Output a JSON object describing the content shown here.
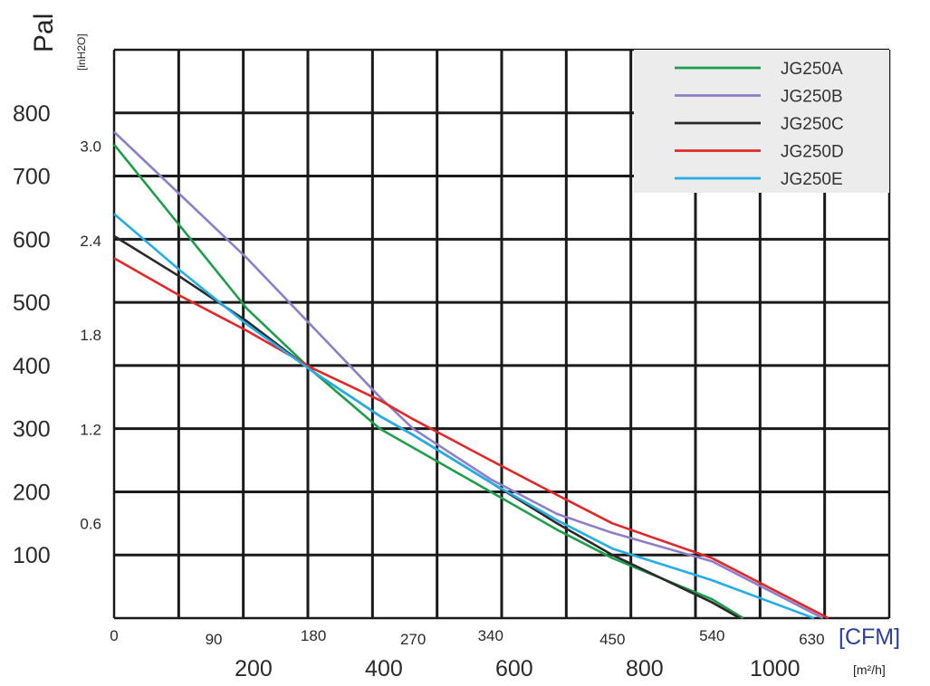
{
  "chart_data": {
    "type": "line",
    "y_primary": {
      "label": "Pal",
      "ticks": [
        {
          "label": "800",
          "value": 800
        },
        {
          "label": "700",
          "value": 700
        },
        {
          "label": "600",
          "value": 600
        },
        {
          "label": "500",
          "value": 500
        },
        {
          "label": "400",
          "value": 400
        },
        {
          "label": "300",
          "value": 300
        },
        {
          "label": "200",
          "value": 200
        },
        {
          "label": "100",
          "value": 100
        }
      ],
      "ylim": [
        0,
        900
      ]
    },
    "y_secondary": {
      "label": "[inH2O]",
      "ticks": [
        {
          "label": "3.0",
          "value": 3.0
        },
        {
          "label": "2.4",
          "value": 2.4
        },
        {
          "label": "1.8",
          "value": 1.8
        },
        {
          "label": "1.2",
          "value": 1.2
        },
        {
          "label": "0.6",
          "value": 0.6
        }
      ]
    },
    "x_primary": {
      "label": "[CFM]",
      "ticks": [
        {
          "label": "0",
          "value": 0
        },
        {
          "label": "90",
          "value": 90
        },
        {
          "label": "180",
          "value": 180
        },
        {
          "label": "270",
          "value": 270
        },
        {
          "label": "340",
          "value": 340
        },
        {
          "label": "450",
          "value": 450
        },
        {
          "label": "540",
          "value": 540
        },
        {
          "label": "630",
          "value": 630
        }
      ],
      "xlim": [
        0,
        700
      ]
    },
    "x_secondary": {
      "label": "[m²/h]",
      "ticks": [
        {
          "label": "200",
          "value": 200
        },
        {
          "label": "400",
          "value": 400
        },
        {
          "label": "600",
          "value": 600
        },
        {
          "label": "800",
          "value": 800
        },
        {
          "label": "1000",
          "value": 1000
        }
      ]
    },
    "grid": true,
    "legend_position": "top-right",
    "series": [
      {
        "name": "JG250A",
        "color": "#1e9e4a",
        "x": [
          0,
          60,
          120,
          180,
          240,
          270,
          340,
          400,
          450,
          540,
          568
        ],
        "y": [
          750,
          620,
          490,
          390,
          300,
          270,
          200,
          140,
          95,
          30,
          0
        ]
      },
      {
        "name": "JG250B",
        "color": "#8e7ec8",
        "x": [
          0,
          60,
          120,
          180,
          240,
          270,
          340,
          400,
          450,
          540,
          640
        ],
        "y": [
          770,
          670,
          570,
          460,
          350,
          300,
          220,
          165,
          135,
          90,
          0
        ]
      },
      {
        "name": "JG250C",
        "color": "#2a2a2a",
        "x": [
          0,
          60,
          120,
          180,
          240,
          270,
          340,
          400,
          450,
          540,
          565
        ],
        "y": [
          605,
          540,
          470,
          390,
          320,
          290,
          215,
          150,
          100,
          25,
          0
        ]
      },
      {
        "name": "JG250D",
        "color": "#e02828",
        "x": [
          0,
          60,
          120,
          180,
          240,
          270,
          340,
          400,
          450,
          540,
          645
        ],
        "y": [
          570,
          510,
          455,
          395,
          345,
          315,
          250,
          195,
          150,
          95,
          0
        ]
      },
      {
        "name": "JG250E",
        "color": "#25aee6",
        "x": [
          0,
          60,
          120,
          180,
          240,
          270,
          340,
          400,
          450,
          540,
          632
        ],
        "y": [
          640,
          550,
          465,
          390,
          320,
          290,
          215,
          155,
          110,
          60,
          0
        ]
      }
    ]
  }
}
